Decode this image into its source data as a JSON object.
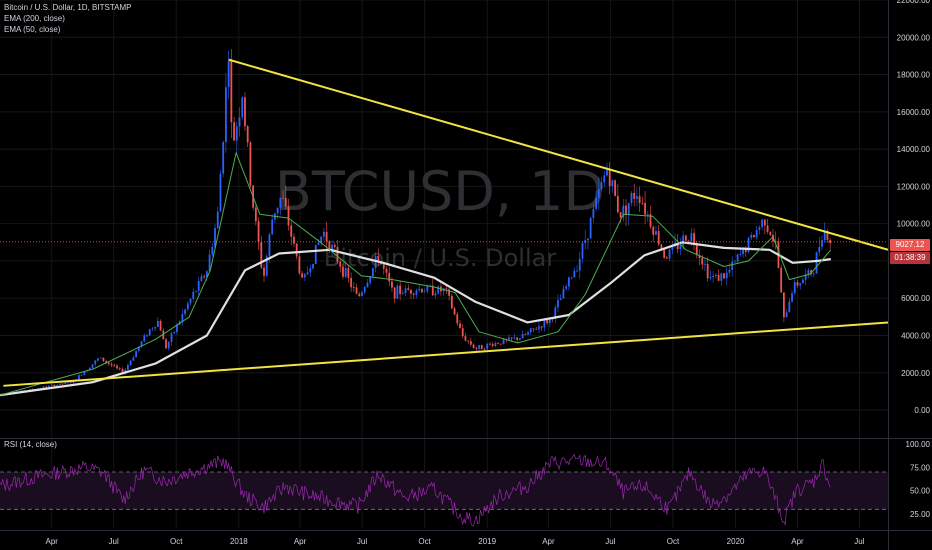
{
  "header": {
    "symbol": "Bitcoin / U.S. Dollar, 1D, BITSTAMP",
    "ema200": "EMA (200, close)",
    "ema50": "EMA (50, close)",
    "rsi": "RSI (14, close)"
  },
  "watermark": {
    "symbol": "BTCUSD, 1D",
    "name": "Bitcoin / U.S. Dollar"
  },
  "price_tag": {
    "price": "9027.12",
    "countdown": "01:38:39"
  },
  "colors": {
    "trendline": "#f0e442",
    "ema50": "#4caf50",
    "ema200": "#e0e0e0",
    "rsi": "#9c27b0",
    "candle_up": "#2962ff",
    "candle_down": "#ef5350",
    "tag_red": "#ef5350"
  },
  "chart_data": [
    {
      "type": "candlestick",
      "title": "Bitcoin / U.S. Dollar, 1D, BITSTAMP",
      "ylim": [
        -1500,
        22000
      ],
      "y_ticks": [
        "22000.00",
        "20000.00",
        "18000.00",
        "16000.00",
        "14000.00",
        "12000.00",
        "10000.00",
        "8000.00",
        "6000.00",
        "4000.00",
        "2000.00",
        "0.00"
      ],
      "y_tick_values": [
        22000,
        20000,
        18000,
        16000,
        14000,
        12000,
        10000,
        8000,
        6000,
        4000,
        2000,
        0
      ],
      "x_ticks": [
        "Apr",
        "Jul",
        "Oct",
        "2018",
        "Apr",
        "Jul",
        "Oct",
        "2019",
        "Apr",
        "Jul",
        "Oct",
        "2020",
        "Apr",
        "Jul"
      ],
      "x_tick_dates": [
        "2017-04-01",
        "2017-07-01",
        "2017-10-01",
        "2018-01-01",
        "2018-04-01",
        "2018-07-01",
        "2018-10-01",
        "2019-01-01",
        "2019-04-01",
        "2019-07-01",
        "2019-10-01",
        "2020-01-01",
        "2020-04-01",
        "2020-07-01"
      ],
      "xlim": [
        "2017-01-15",
        "2020-08-12"
      ],
      "price_series": {
        "dates": [
          "2017-01-15",
          "2017-03-01",
          "2017-05-01",
          "2017-06-10",
          "2017-07-15",
          "2017-08-20",
          "2017-09-05",
          "2017-09-15",
          "2017-10-20",
          "2017-11-15",
          "2017-12-01",
          "2017-12-17",
          "2017-12-22",
          "2018-01-06",
          "2018-01-20",
          "2018-02-06",
          "2018-02-20",
          "2018-03-05",
          "2018-04-05",
          "2018-05-05",
          "2018-06-25",
          "2018-07-25",
          "2018-08-15",
          "2018-09-20",
          "2018-11-01",
          "2018-11-25",
          "2018-12-15",
          "2019-01-15",
          "2019-02-20",
          "2019-04-05",
          "2019-05-15",
          "2019-06-26",
          "2019-07-15",
          "2019-08-10",
          "2019-09-20",
          "2019-10-26",
          "2019-11-25",
          "2019-12-18",
          "2020-01-15",
          "2020-02-13",
          "2020-03-01",
          "2020-03-12",
          "2020-03-25",
          "2020-04-25",
          "2020-05-08",
          "2020-05-20"
        ],
        "close": [
          850,
          1100,
          1500,
          2800,
          2000,
          4200,
          4800,
          3300,
          5800,
          7500,
          10500,
          19300,
          14000,
          17000,
          11500,
          7000,
          10500,
          11500,
          6800,
          9600,
          6000,
          8200,
          6300,
          6500,
          6400,
          4000,
          3300,
          3600,
          3900,
          4900,
          8000,
          13000,
          10500,
          11800,
          8200,
          9500,
          7100,
          7200,
          8700,
          10300,
          8700,
          4800,
          6600,
          7500,
          9800,
          9027
        ]
      },
      "series": [
        {
          "name": "EMA (200, close)",
          "dates": [
            "2017-01-15",
            "2017-06-01",
            "2017-09-01",
            "2017-11-15",
            "2018-01-10",
            "2018-03-01",
            "2018-05-15",
            "2018-08-01",
            "2018-10-15",
            "2018-12-15",
            "2019-03-01",
            "2019-05-01",
            "2019-07-01",
            "2019-08-20",
            "2019-10-15",
            "2019-12-15",
            "2020-02-20",
            "2020-03-25",
            "2020-05-01",
            "2020-05-20"
          ],
          "values": [
            800,
            1500,
            2500,
            4000,
            7500,
            8400,
            8600,
            7900,
            7100,
            5800,
            4700,
            5100,
            6800,
            8300,
            9000,
            8700,
            8600,
            7900,
            8000,
            8100
          ]
        },
        {
          "name": "EMA (50, close)",
          "dates": [
            "2017-01-15",
            "2017-06-01",
            "2017-09-01",
            "2017-10-20",
            "2017-11-20",
            "2017-12-28",
            "2018-02-01",
            "2018-03-15",
            "2018-05-01",
            "2018-06-30",
            "2018-08-15",
            "2018-10-15",
            "2018-11-15",
            "2018-12-20",
            "2019-02-15",
            "2019-04-15",
            "2019-05-25",
            "2019-07-20",
            "2019-09-01",
            "2019-10-20",
            "2019-12-15",
            "2020-01-20",
            "2020-02-25",
            "2020-03-20",
            "2020-04-20",
            "2020-05-20"
          ],
          "values": [
            800,
            2200,
            3800,
            5000,
            7500,
            13800,
            10500,
            10300,
            9000,
            7200,
            7000,
            6600,
            6300,
            4200,
            3600,
            4200,
            6200,
            10500,
            10400,
            8600,
            7700,
            8000,
            9300,
            7000,
            7300,
            8600
          ]
        }
      ],
      "annotations": [
        {
          "type": "trendline",
          "from": {
            "date": "2017-12-17",
            "value": 18800
          },
          "to": {
            "date": "2020-08-12",
            "value": 8600
          }
        },
        {
          "type": "trendline",
          "from": {
            "date": "2017-01-20",
            "value": 1300
          },
          "to": {
            "date": "2020-08-12",
            "value": 4700
          }
        },
        {
          "type": "hline",
          "value": 9027.12,
          "style": "dotted red"
        }
      ]
    },
    {
      "type": "line",
      "title": "RSI (14, close)",
      "ylim": [
        10,
        100
      ],
      "y_ticks": [
        "100.00",
        "75.00",
        "50.00",
        "25.00"
      ],
      "y_tick_values": [
        100,
        75,
        50,
        25
      ],
      "bands": [
        70,
        30
      ],
      "series": [
        {
          "name": "RSI (14, close)",
          "dates": [
            "2017-01-15",
            "2017-03-10",
            "2017-05-20",
            "2017-06-15",
            "2017-07-15",
            "2017-08-15",
            "2017-09-15",
            "2017-10-20",
            "2017-12-10",
            "2018-01-10",
            "2018-02-06",
            "2018-03-10",
            "2018-04-15",
            "2018-06-25",
            "2018-07-25",
            "2018-09-01",
            "2018-10-15",
            "2018-11-25",
            "2018-12-15",
            "2019-01-20",
            "2019-03-01",
            "2019-04-05",
            "2019-05-20",
            "2019-06-26",
            "2019-07-20",
            "2019-08-20",
            "2019-09-25",
            "2019-10-26",
            "2019-11-25",
            "2019-12-20",
            "2020-01-20",
            "2020-02-12",
            "2020-03-12",
            "2020-03-30",
            "2020-04-25",
            "2020-05-08",
            "2020-05-20"
          ],
          "values": [
            55,
            65,
            75,
            70,
            40,
            72,
            60,
            70,
            82,
            45,
            32,
            55,
            45,
            33,
            68,
            42,
            52,
            22,
            18,
            45,
            55,
            80,
            82,
            78,
            48,
            55,
            30,
            70,
            35,
            45,
            68,
            72,
            18,
            50,
            60,
            80,
            52
          ]
        }
      ]
    }
  ]
}
